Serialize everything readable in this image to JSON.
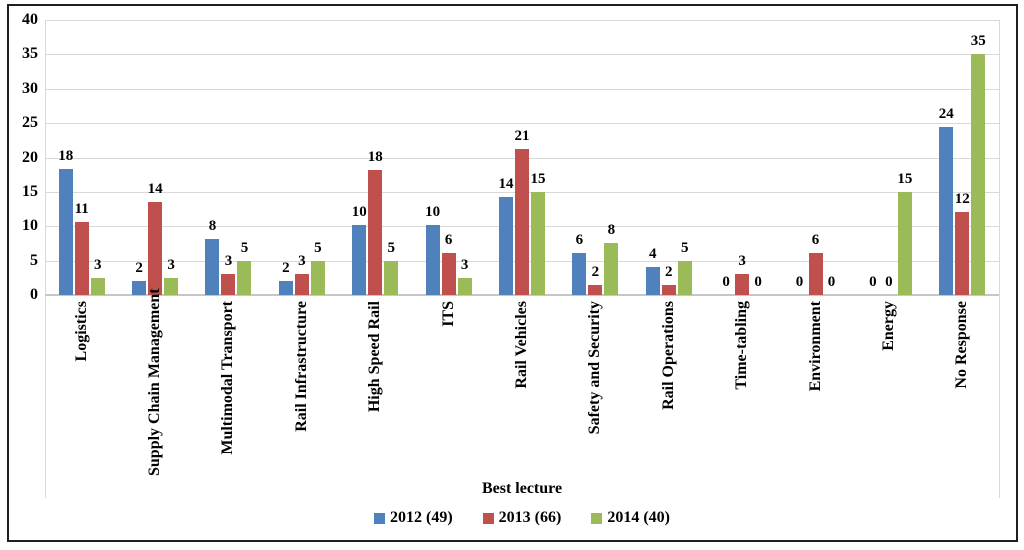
{
  "chart_data": {
    "type": "bar",
    "title": "",
    "xlabel": "Best lecture",
    "ylabel": "",
    "ylim": [
      0,
      40
    ],
    "yticks": [
      0,
      5,
      10,
      15,
      20,
      25,
      30,
      35,
      40
    ],
    "grid": true,
    "grid_color": "#d9d9d9",
    "axis_color": "#c6c6c6",
    "legend_position": "bottom",
    "categories": [
      "Logistics",
      "Supply Chain Management",
      "Multimodal Transport",
      "Rail Infrastructure",
      "High Speed Rail",
      "ITS",
      "Rail Vehicles",
      "Safety and Security",
      "Rail Operations",
      "Time-tabling",
      "Environment",
      "Energy",
      "No Response"
    ],
    "series": [
      {
        "name": "2012 (49)",
        "color": "#4F81BD",
        "data_labels": [
          18,
          2,
          8,
          2,
          10,
          10,
          14,
          6,
          4,
          0,
          0,
          0,
          24
        ],
        "bar_heights": [
          18.4,
          2.0,
          8.2,
          2.0,
          10.2,
          10.2,
          14.3,
          6.1,
          4.1,
          0,
          0,
          0,
          24.5
        ]
      },
      {
        "name": "2013 (66)",
        "color": "#C0504D",
        "data_labels": [
          11,
          14,
          3,
          3,
          18,
          6,
          21,
          2,
          2,
          3,
          6,
          0,
          12
        ],
        "bar_heights": [
          10.6,
          13.6,
          3.0,
          3.0,
          18.2,
          6.1,
          21.2,
          1.5,
          1.5,
          3.0,
          6.1,
          0,
          12.1
        ]
      },
      {
        "name": "2014 (40)",
        "color": "#9BBB59",
        "data_labels": [
          3,
          3,
          5,
          5,
          5,
          3,
          15,
          8,
          5,
          0,
          0,
          15,
          35
        ],
        "bar_heights": [
          2.5,
          2.5,
          5.0,
          5.0,
          5.0,
          2.5,
          15.0,
          7.5,
          5.0,
          0,
          0,
          15.0,
          35.0
        ]
      }
    ]
  }
}
